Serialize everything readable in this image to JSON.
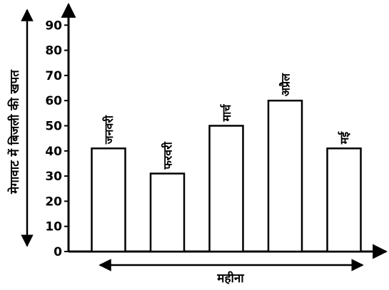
{
  "chart_data": {
    "type": "bar",
    "categories": [
      "जनवरी",
      "फरवरी",
      "मार्च",
      "अप्रैल",
      "मई"
    ],
    "values": [
      41,
      31,
      50,
      60,
      41
    ],
    "title": "",
    "xlabel": "महीना",
    "ylabel": "मेगावाट में बिजली की खपत",
    "ylim": [
      0,
      90
    ],
    "yticks": [
      0,
      10,
      20,
      30,
      40,
      50,
      60,
      70,
      80,
      90
    ],
    "grid": false,
    "legend": "none",
    "bar_fill": "#ffffff",
    "bar_stroke": "#000000",
    "axis_color": "#000000"
  }
}
